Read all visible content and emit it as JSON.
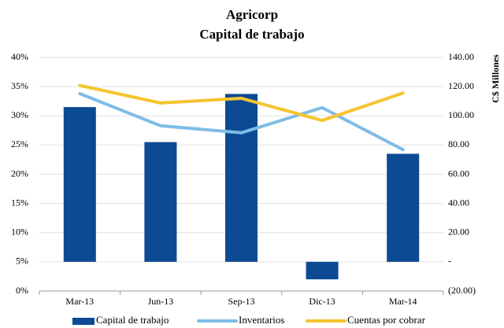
{
  "chart_data": {
    "type": "combo",
    "title": "Agricorp",
    "subtitle": "Capital de trabajo",
    "y2_label": "C$ Millones",
    "categories": [
      "Mar-13",
      "Jun-13",
      "Sep-13",
      "Dic-13",
      "Mar-14"
    ],
    "series": [
      {
        "name": "Capital de trabajo",
        "type": "bar",
        "axis": "y2",
        "color": "#0d4a94",
        "values": [
          106,
          82,
          115,
          -12,
          74
        ]
      },
      {
        "name": "Inventarios",
        "type": "line",
        "axis": "y",
        "color": "#7fbce6",
        "values": [
          33.8,
          28.3,
          27.1,
          31.4,
          24.2
        ]
      },
      {
        "name": "Cuentas por cobrar",
        "type": "line",
        "axis": "y",
        "color": "#f5c430",
        "values": [
          35.2,
          32.2,
          33.0,
          29.2,
          33.9
        ]
      }
    ],
    "ylim": [
      0,
      40
    ],
    "yticks": [
      {
        "value": 0,
        "label": "0%"
      },
      {
        "value": 5,
        "label": "5%"
      },
      {
        "value": 10,
        "label": "10%"
      },
      {
        "value": 15,
        "label": "15%"
      },
      {
        "value": 20,
        "label": "20%"
      },
      {
        "value": 25,
        "label": "25%"
      },
      {
        "value": 30,
        "label": "30%"
      },
      {
        "value": 35,
        "label": "35%"
      },
      {
        "value": 40,
        "label": "40%"
      }
    ],
    "y2lim": [
      -20,
      140
    ],
    "y2ticks": [
      {
        "value": -20,
        "label": "(20.00)"
      },
      {
        "value": 0,
        "label": "-"
      },
      {
        "value": 20,
        "label": "20.00"
      },
      {
        "value": 40,
        "label": "40.00"
      },
      {
        "value": 60,
        "label": "60.00"
      },
      {
        "value": 80,
        "label": "80.00"
      },
      {
        "value": 100,
        "label": "100.00"
      },
      {
        "value": 120,
        "label": "120.00"
      },
      {
        "value": 140,
        "label": "140.00"
      }
    ],
    "grid": true,
    "legend": "bottom"
  }
}
